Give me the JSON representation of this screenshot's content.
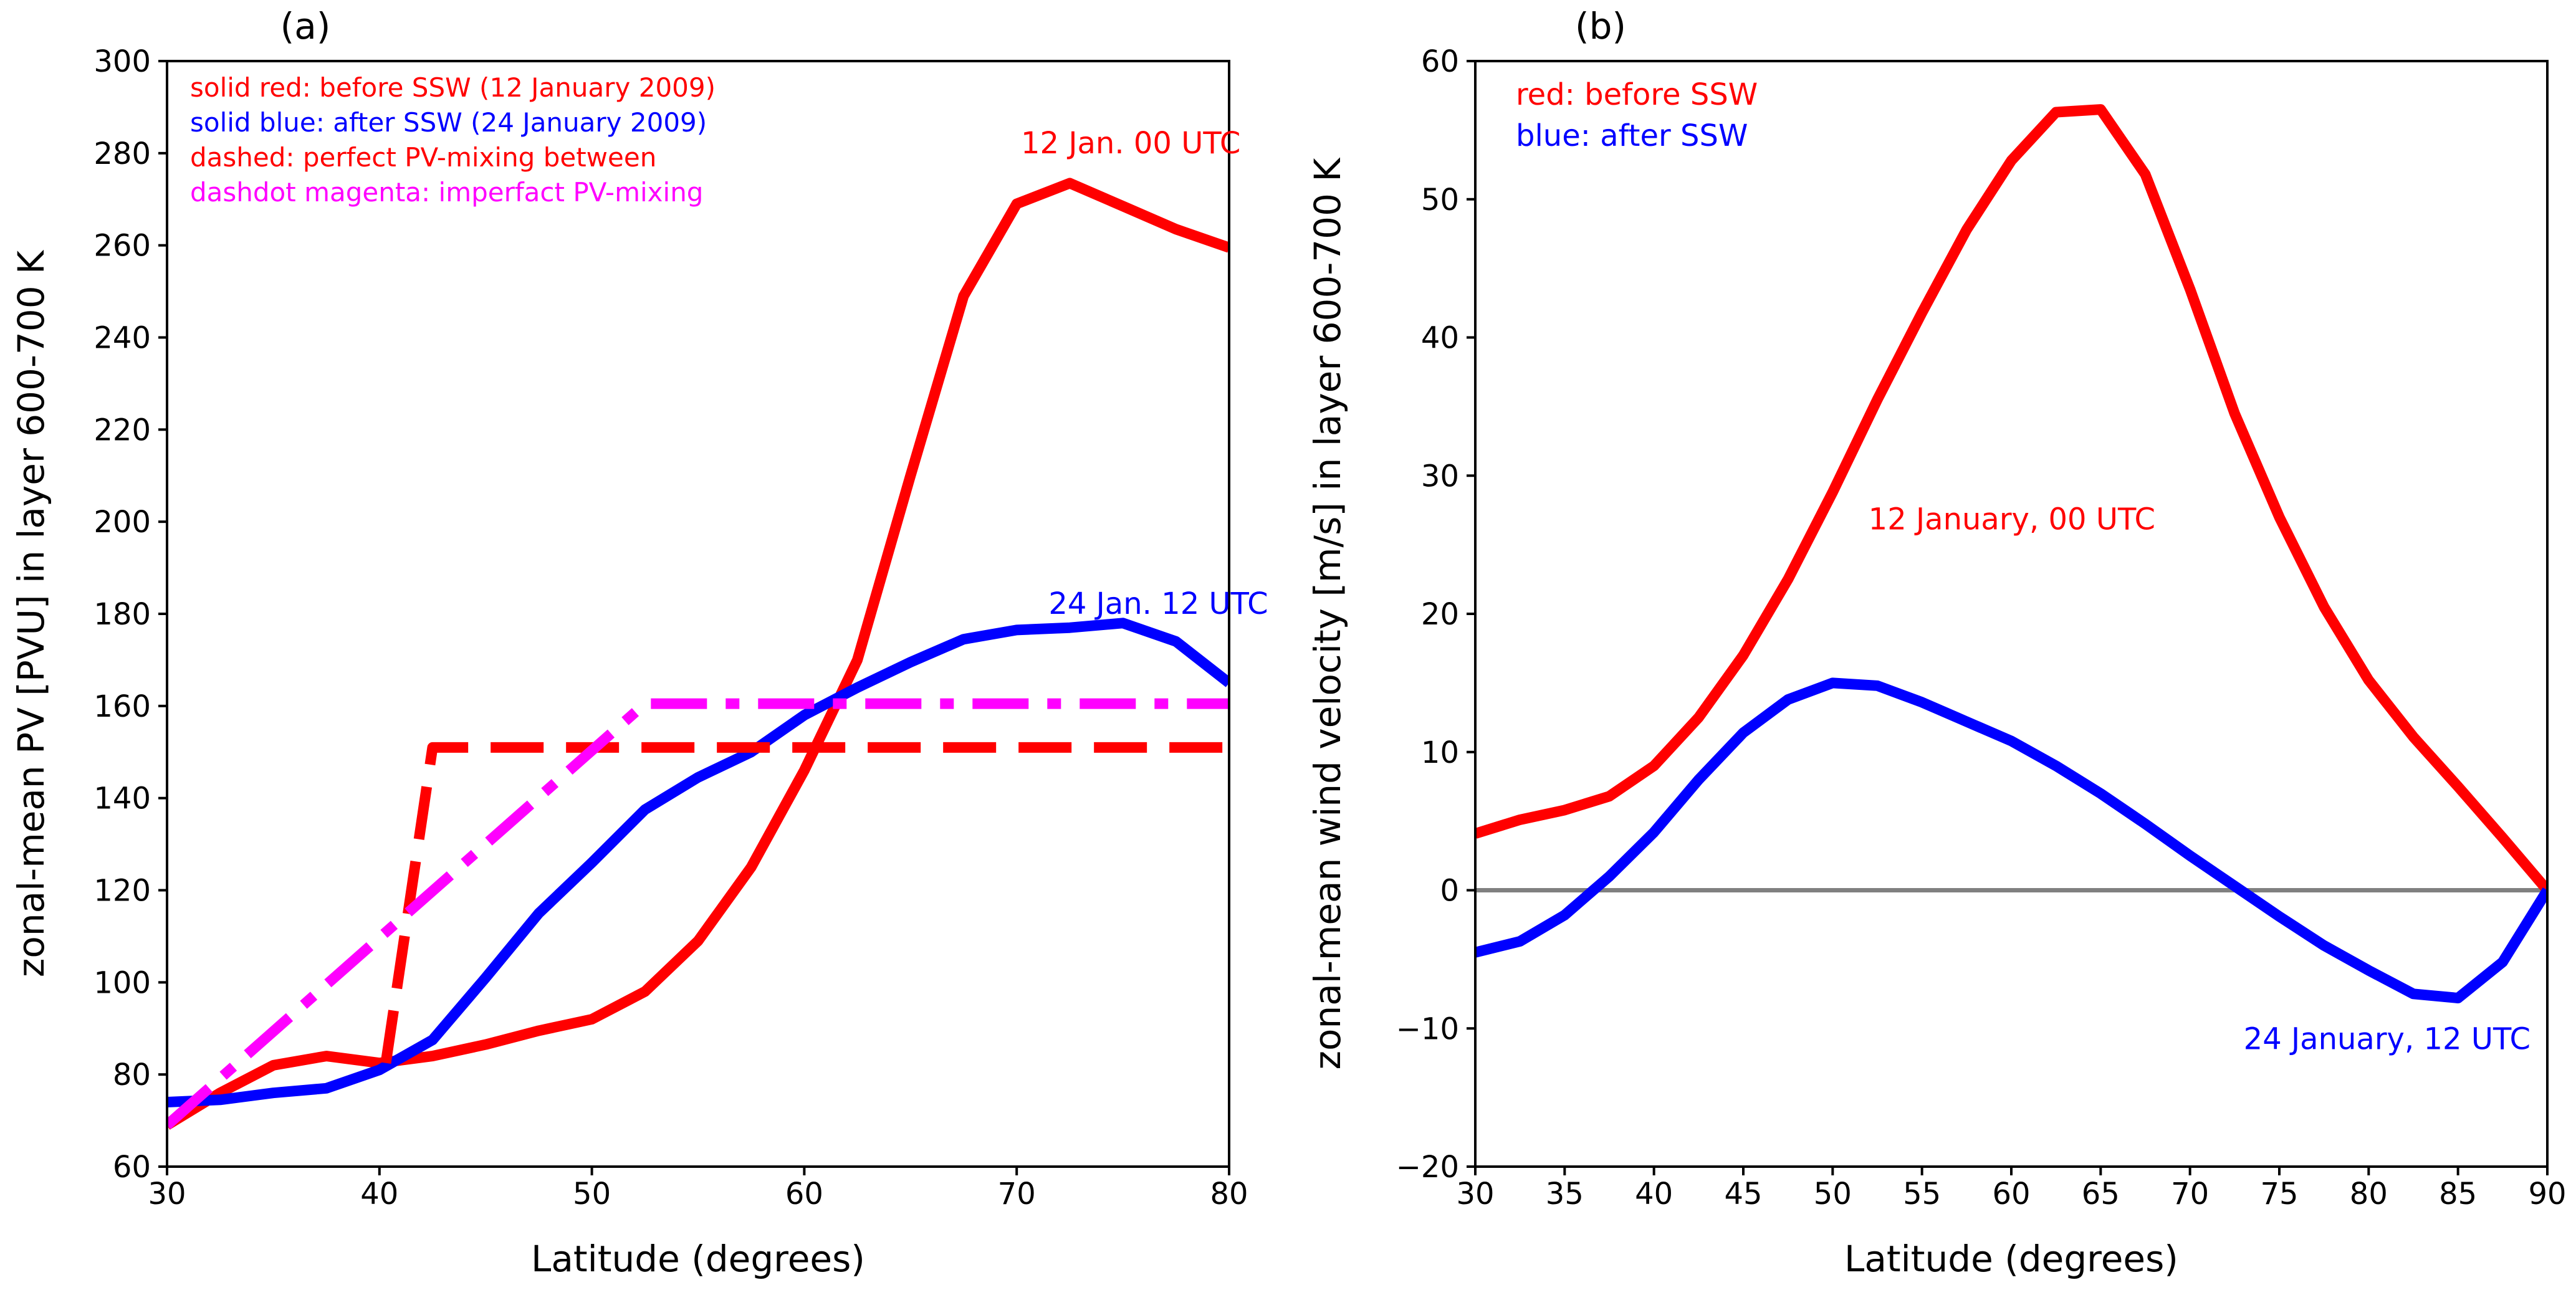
{
  "chart_data": [
    {
      "type": "line",
      "panel_label": "(a)",
      "xlabel": "Latitude (degrees)",
      "ylabel": "zonal-mean PV [PVU] in layer 600-700 K",
      "xlim": [
        30,
        80
      ],
      "ylim": [
        60,
        300
      ],
      "xticks": [
        30,
        40,
        50,
        60,
        70,
        80
      ],
      "yticks": [
        60,
        80,
        100,
        120,
        140,
        160,
        180,
        200,
        220,
        240,
        260,
        280,
        300
      ],
      "legend_text": [
        {
          "text": "solid red: before SSW (12 January 2009)",
          "color": "#ff0000"
        },
        {
          "text": "solid blue: after SSW (24 January 2009)",
          "color": "#0000ff"
        },
        {
          "text": "dashed: perfect PV-mixing between",
          "color": "#ff0000"
        },
        {
          "text": "dashdot magenta: imperfact PV-mixing",
          "color": "#ff00ff"
        }
      ],
      "annotations": [
        {
          "text": "12 Jan. 00 UTC",
          "color": "#ff0000",
          "x": 70.2,
          "y": 280
        },
        {
          "text": "24 Jan. 12 UTC",
          "color": "#0000ff",
          "x": 71.5,
          "y": 180
        }
      ],
      "series": [
        {
          "name": "before SSW (12 January 2009)",
          "color": "#ff0000",
          "style": "solid",
          "x": [
            30,
            32.5,
            35,
            37.5,
            40,
            42.5,
            45,
            47.5,
            50,
            52.5,
            55,
            57.5,
            60,
            62.5,
            65,
            67.5,
            70,
            72.5,
            75,
            77.5,
            80
          ],
          "y": [
            69,
            76,
            82,
            84,
            82.5,
            84,
            86.5,
            89.5,
            92,
            98,
            109,
            125,
            146,
            170,
            210,
            249,
            269,
            273.5,
            268.5,
            263.5,
            259.5
          ]
        },
        {
          "name": "after SSW (24 January 2009)",
          "color": "#0000ff",
          "style": "solid",
          "x": [
            30,
            32.5,
            35,
            37.5,
            40,
            42.5,
            45,
            47.5,
            50,
            52.5,
            55,
            57.5,
            60,
            62.5,
            65,
            67.5,
            70,
            72.5,
            75,
            77.5,
            80
          ],
          "y": [
            74,
            74.5,
            76,
            77,
            81,
            87.5,
            101,
            115,
            126,
            137.5,
            144.5,
            150,
            158,
            164,
            169.5,
            174.5,
            176.5,
            177,
            178,
            174,
            165
          ]
        },
        {
          "name": "perfect PV-mixing",
          "color": "#ff0000",
          "style": "dashed",
          "x": [
            40.3,
            42.5,
            80
          ],
          "y": [
            82.5,
            151,
            151
          ]
        },
        {
          "name": "imperfect PV-mixing",
          "color": "#ff00ff",
          "style": "dashdot",
          "x": [
            30,
            52.5,
            80
          ],
          "y": [
            69,
            160.5,
            160.5
          ]
        }
      ]
    },
    {
      "type": "line",
      "panel_label": "(b)",
      "xlabel": "Latitude (degrees)",
      "ylabel": "zonal-mean wind velocity [m/s] in layer 600-700 K",
      "xlim": [
        30,
        90
      ],
      "ylim": [
        -20,
        60
      ],
      "xticks": [
        30,
        35,
        40,
        45,
        50,
        55,
        60,
        65,
        70,
        75,
        80,
        85,
        90
      ],
      "yticks": [
        -20,
        -10,
        0,
        10,
        20,
        30,
        40,
        50,
        60
      ],
      "ytick_labels": [
        "−20",
        "−10",
        "0",
        "10",
        "20",
        "30",
        "40",
        "50",
        "60"
      ],
      "legend_text": [
        {
          "text": "red: before SSW",
          "color": "#ff0000"
        },
        {
          "text": "blue: after SSW",
          "color": "#0000ff"
        }
      ],
      "annotations": [
        {
          "text": "12 January, 00 UTC",
          "color": "#ff0000",
          "x": 52,
          "y": 26.1
        },
        {
          "text": "24 January, 12 UTC",
          "color": "#0000ff",
          "x": 73,
          "y": -11.5
        }
      ],
      "zero_line": {
        "y": 0,
        "color": "#808080"
      },
      "series": [
        {
          "name": "before SSW",
          "color": "#ff0000",
          "style": "solid",
          "x": [
            30,
            32.5,
            35,
            37.5,
            40,
            42.5,
            45,
            47.5,
            50,
            52.5,
            55,
            57.5,
            60,
            62.5,
            65,
            67.5,
            70,
            72.5,
            75,
            77.5,
            80,
            82.5,
            85,
            87.5,
            90
          ],
          "y": [
            4.1,
            5.1,
            5.8,
            6.8,
            9,
            12.5,
            17,
            22.5,
            28.8,
            35.5,
            41.8,
            47.8,
            52.8,
            56.3,
            56.5,
            51.8,
            43.5,
            34.5,
            27,
            20.5,
            15.2,
            11.1,
            7.5,
            3.8,
            0
          ]
        },
        {
          "name": "after SSW",
          "color": "#0000ff",
          "style": "solid",
          "x": [
            30,
            32.5,
            35,
            37.5,
            40,
            42.5,
            45,
            47.5,
            50,
            52.5,
            55,
            57.5,
            60,
            62.5,
            65,
            67.5,
            70,
            72.5,
            75,
            77.5,
            80,
            82.5,
            85,
            87.5,
            90
          ],
          "y": [
            -4.5,
            -3.7,
            -1.8,
            1,
            4.2,
            8,
            11.4,
            13.8,
            15,
            14.8,
            13.6,
            12.2,
            10.8,
            9,
            7,
            4.8,
            2.5,
            0.3,
            -1.9,
            -4,
            -5.8,
            -7.5,
            -7.8,
            -5.2,
            0
          ]
        }
      ]
    }
  ]
}
